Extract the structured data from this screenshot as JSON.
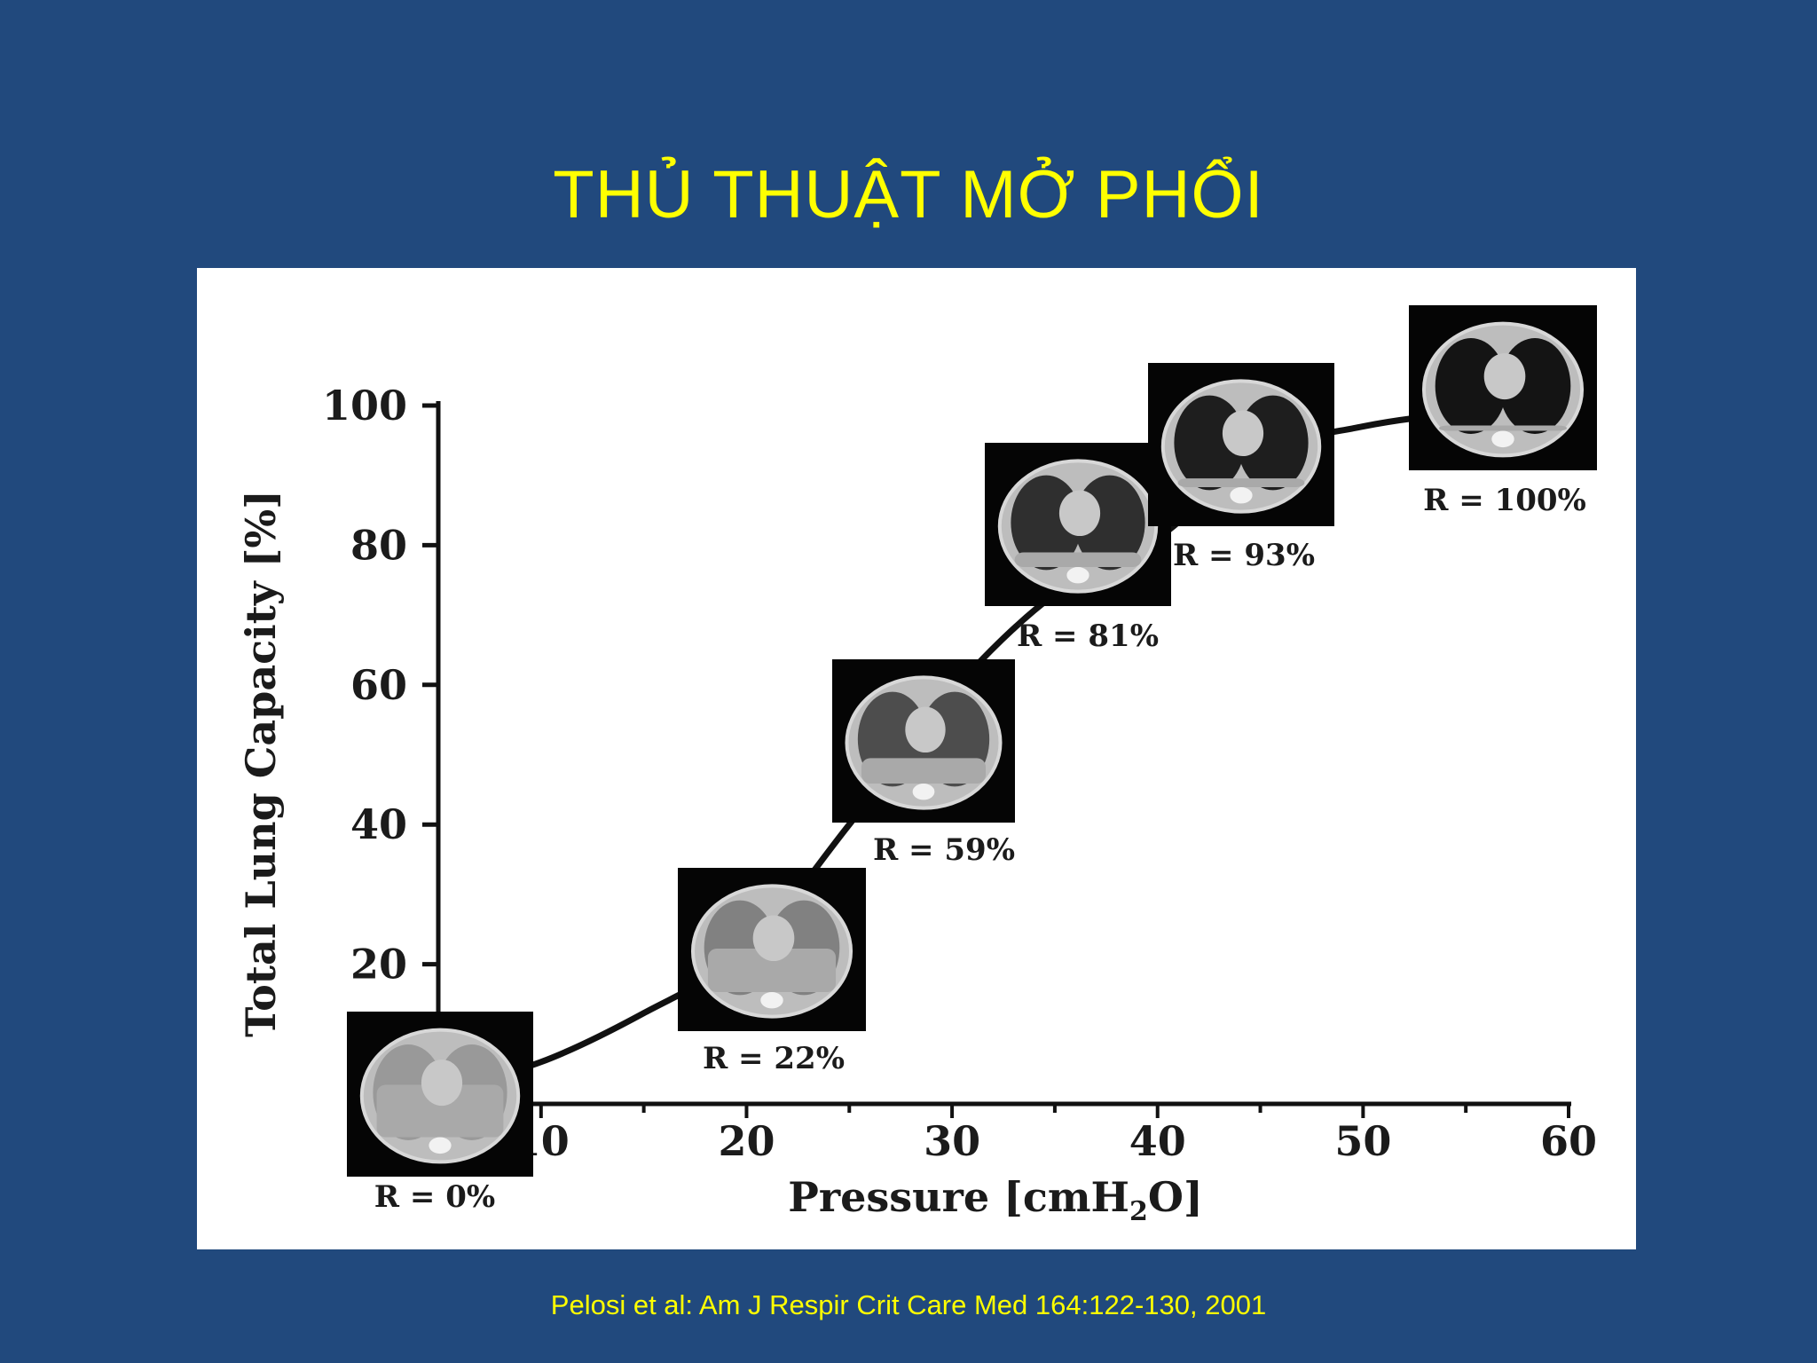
{
  "slide": {
    "title": "THỦ THUẬT MỞ PHỔI",
    "citation": "Pelosi et al: Am J Respir Crit Care Med 164:122-130, 2001"
  },
  "colors": {
    "background": "#21497d",
    "title_text": "#ffff00",
    "panel": "#ffffff",
    "curve": "#111111",
    "ct_frame": "#050505"
  },
  "chart_data": {
    "type": "line",
    "title": "",
    "xlabel_main": "Pressure [cmH",
    "xlabel_sub": "2",
    "xlabel_end": "O]",
    "ylabel": "Total Lung Capacity [%]",
    "xlim": [
      5,
      60
    ],
    "ylim": [
      0,
      100
    ],
    "x_ticks": [
      10,
      20,
      30,
      40,
      50,
      60
    ],
    "x_tick_labels": [
      "10",
      "20",
      "30",
      "40",
      "50",
      "60"
    ],
    "y_ticks": [
      20,
      40,
      60,
      80,
      100
    ],
    "y_tick_labels": [
      "20",
      "40",
      "60",
      "80",
      "100"
    ],
    "grid": false,
    "series": [
      {
        "x": [
          5,
          10,
          15,
          20,
          25,
          30,
          35,
          40,
          45,
          50,
          55,
          60
        ],
        "y": [
          2,
          6,
          13,
          22,
          40,
          59,
          73,
          81,
          93,
          97,
          99,
          100
        ]
      }
    ],
    "ct_images": [
      {
        "label": "R = 0%",
        "icon": "ct-lung-scan-icon"
      },
      {
        "label": "R = 22%",
        "icon": "ct-lung-scan-icon"
      },
      {
        "label": "R = 59%",
        "icon": "ct-lung-scan-icon"
      },
      {
        "label": "R = 81%",
        "icon": "ct-lung-scan-icon"
      },
      {
        "label": "R = 93%",
        "icon": "ct-lung-scan-icon"
      },
      {
        "label": "R = 100%",
        "icon": "ct-lung-scan-icon"
      }
    ]
  }
}
